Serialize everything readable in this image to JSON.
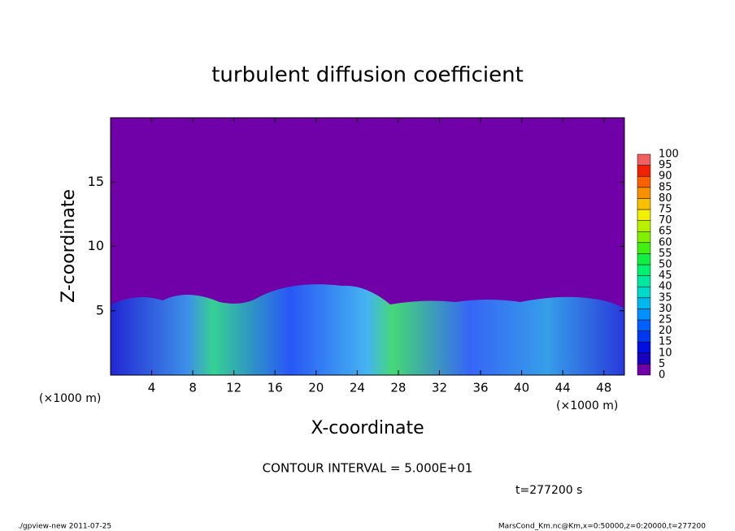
{
  "chart_data": {
    "type": "heatmap",
    "title": "turbulent diffusion coefficient",
    "xlabel": "X-coordinate",
    "ylabel": "Z-coordinate",
    "x_unit_labels": [
      "(×1000 m)",
      "(×1000 m)"
    ],
    "xlim": [
      0,
      50
    ],
    "xticks": [
      4,
      8,
      12,
      16,
      20,
      24,
      28,
      32,
      36,
      40,
      44,
      48
    ],
    "ylim": [
      0,
      20
    ],
    "yticks": [
      5,
      10,
      15
    ],
    "background_color": "#7000a8",
    "colorbar": {
      "levels": [
        0,
        5,
        10,
        15,
        20,
        25,
        30,
        35,
        40,
        45,
        50,
        55,
        60,
        65,
        70,
        75,
        80,
        85,
        90,
        95,
        100
      ],
      "colors": [
        "#7000a8",
        "#1800c0",
        "#0010e0",
        "#0038f0",
        "#0060ff",
        "#0090ff",
        "#00b8f0",
        "#00d8c8",
        "#00e8a0",
        "#00f070",
        "#10f040",
        "#40f010",
        "#80f000",
        "#b8f000",
        "#f0f000",
        "#f8c000",
        "#f89000",
        "#f86000",
        "#f02000",
        "#f06060"
      ]
    },
    "contour_interval": "CONTOUR INTERVAL = 5.000E+01",
    "time_label": "t=277200 s",
    "footer_left": "./gpview-new  2011-07-25",
    "footer_right": "MarsCond_Km.nc@Km,x=0:50000,z=0:20000,t=277200"
  }
}
